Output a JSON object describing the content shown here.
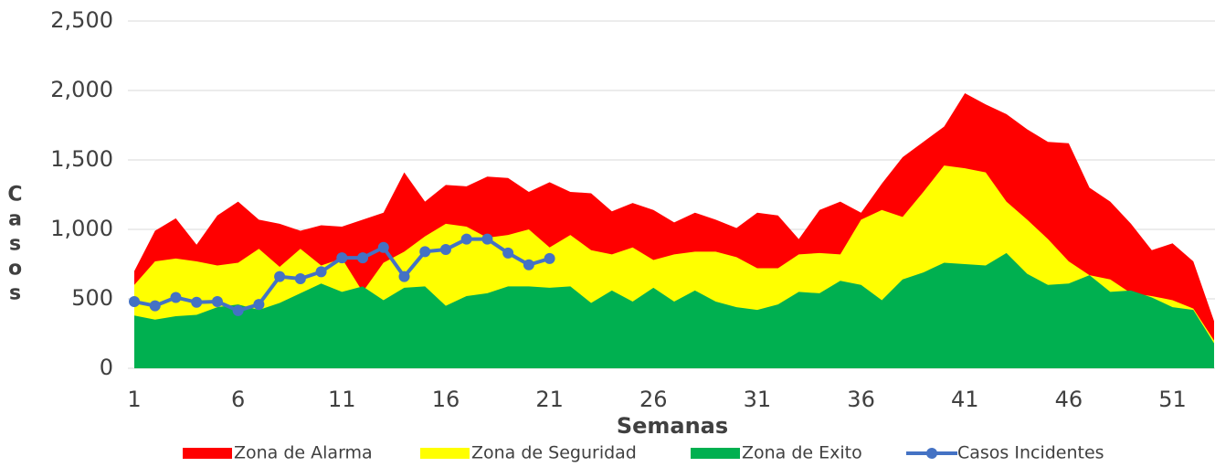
{
  "chart_data": {
    "type": "area",
    "x_label": "Semanas",
    "y_label": "Casos",
    "x": [
      1,
      2,
      3,
      4,
      5,
      6,
      7,
      8,
      9,
      10,
      11,
      12,
      13,
      14,
      15,
      16,
      17,
      18,
      19,
      20,
      21,
      22,
      23,
      24,
      25,
      26,
      27,
      28,
      29,
      30,
      31,
      32,
      33,
      34,
      35,
      36,
      37,
      38,
      39,
      40,
      41,
      42,
      43,
      44,
      45,
      46,
      47,
      48,
      49,
      50,
      51,
      52,
      53
    ],
    "xlim": [
      1,
      53
    ],
    "xticks": [
      1,
      6,
      11,
      16,
      21,
      26,
      31,
      36,
      41,
      46,
      51
    ],
    "ylim": [
      0,
      2500
    ],
    "yticks": [
      0,
      500,
      {
        "value": 1000,
        "label": "1,000"
      },
      {
        "value": 1500,
        "label": "1,500"
      },
      {
        "value": 2000,
        "label": "2,000"
      },
      {
        "value": 2500,
        "label": "2,500"
      }
    ],
    "grid": true,
    "legend": "bottom",
    "series": [
      {
        "name": "Zona de Alarma",
        "color": "#ff0000",
        "values": [
          700,
          990,
          1080,
          890,
          1100,
          1200,
          1070,
          1040,
          990,
          1030,
          1020,
          1070,
          1120,
          1410,
          1200,
          1320,
          1310,
          1380,
          1370,
          1270,
          1340,
          1270,
          1260,
          1130,
          1190,
          1140,
          1050,
          1120,
          1070,
          1010,
          1120,
          1100,
          930,
          1140,
          1200,
          1120,
          1330,
          1520,
          1630,
          1740,
          1980,
          1900,
          1830,
          1720,
          1630,
          1620,
          1300,
          1200,
          1040,
          850,
          900,
          770,
          340
        ]
      },
      {
        "name": "Zona de Seguridad",
        "color": "#ffff00",
        "values": [
          600,
          770,
          790,
          770,
          740,
          760,
          860,
          730,
          860,
          740,
          790,
          550,
          760,
          840,
          950,
          1040,
          1020,
          940,
          960,
          1000,
          870,
          960,
          850,
          820,
          870,
          780,
          820,
          840,
          840,
          800,
          720,
          720,
          820,
          830,
          820,
          1070,
          1140,
          1090,
          1270,
          1460,
          1440,
          1410,
          1200,
          1070,
          930,
          770,
          670,
          640,
          540,
          520,
          490,
          430,
          200
        ]
      },
      {
        "name": "Zona de Exito",
        "color": "#00b050",
        "values": [
          380,
          350,
          375,
          385,
          440,
          460,
          420,
          470,
          540,
          610,
          550,
          590,
          490,
          580,
          590,
          450,
          520,
          540,
          590,
          590,
          580,
          590,
          470,
          560,
          480,
          580,
          480,
          560,
          480,
          440,
          420,
          460,
          550,
          540,
          630,
          600,
          490,
          640,
          690,
          760,
          750,
          740,
          830,
          680,
          600,
          610,
          670,
          550,
          560,
          510,
          440,
          420,
          180
        ]
      },
      {
        "name": "Casos Incidentes",
        "type": "line",
        "color": "#4472c4",
        "values": [
          480,
          450,
          510,
          475,
          480,
          415,
          460,
          660,
          645,
          695,
          795,
          795,
          870,
          660,
          840,
          855,
          930,
          930,
          830,
          745,
          790,
          null,
          null,
          null,
          null,
          null,
          null,
          null,
          null,
          null,
          null,
          null,
          null,
          null,
          null,
          null,
          null,
          null,
          null,
          null,
          null,
          null,
          null,
          null,
          null,
          null,
          null,
          null,
          null,
          null,
          null,
          null,
          null
        ]
      }
    ]
  }
}
